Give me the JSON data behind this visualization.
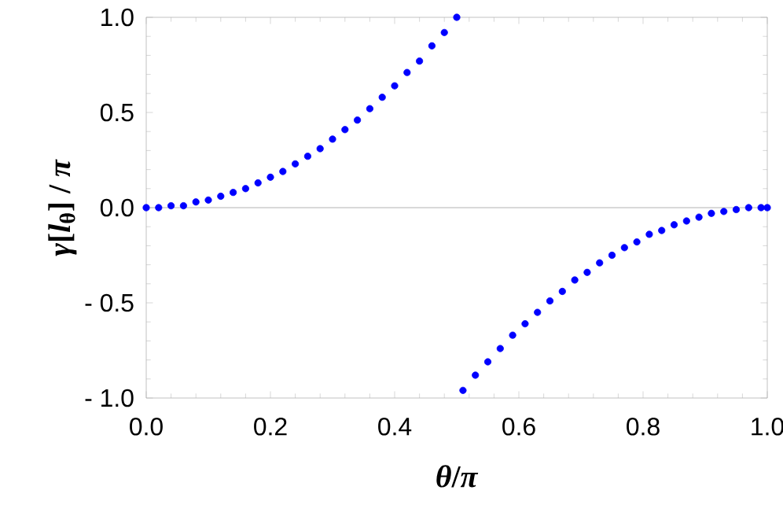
{
  "chart_data": {
    "type": "scatter",
    "xlabel": "*θ*/*π*",
    "ylabel": "*γ*[*l*$_{θ}$] / *π*",
    "x": [
      0,
      0.02,
      0.04,
      0.06,
      0.08,
      0.1,
      0.12,
      0.14,
      0.16,
      0.18,
      0.2,
      0.22,
      0.24,
      0.26,
      0.28,
      0.3,
      0.32,
      0.34,
      0.36,
      0.38,
      0.4,
      0.42,
      0.44,
      0.46,
      0.48,
      0.5,
      0.51,
      0.53,
      0.55,
      0.57,
      0.59,
      0.61,
      0.63,
      0.65,
      0.67,
      0.69,
      0.71,
      0.73,
      0.75,
      0.77,
      0.79,
      0.81,
      0.83,
      0.85,
      0.87,
      0.89,
      0.91,
      0.93,
      0.95,
      0.97,
      0.99,
      1.0
    ],
    "series": [
      {
        "color": "#0000ff",
        "values": [
          0,
          0,
          0.01,
          0.01,
          0.03,
          0.04,
          0.06,
          0.08,
          0.1,
          0.13,
          0.16,
          0.19,
          0.23,
          0.27,
          0.31,
          0.36,
          0.41,
          0.46,
          0.52,
          0.58,
          0.64,
          0.71,
          0.77,
          0.85,
          0.92,
          1.0,
          -0.96,
          -0.88,
          -0.81,
          -0.74,
          -0.67,
          -0.61,
          -0.55,
          -0.49,
          -0.44,
          -0.38,
          -0.34,
          -0.29,
          -0.25,
          -0.21,
          -0.18,
          -0.14,
          -0.12,
          -0.09,
          -0.07,
          -0.05,
          -0.03,
          -0.02,
          -0.01,
          0,
          0,
          0
        ]
      }
    ],
    "xlim": [
      0,
      1.0
    ],
    "ylim": [
      -1.0,
      1.0
    ],
    "xticks": [
      {
        "value": 0,
        "label": "0.0"
      },
      {
        "value": 0.2,
        "label": "0.2"
      },
      {
        "value": 0.4,
        "label": "0.4"
      },
      {
        "value": 0.6,
        "label": "0.6"
      },
      {
        "value": 0.8,
        "label": "0.8"
      },
      {
        "value": 1.0,
        "label": "1.0"
      }
    ],
    "yticks": [
      {
        "value": -1.0,
        "label": "- 1.0"
      },
      {
        "value": -0.5,
        "label": "- 0.5"
      },
      {
        "value": 0,
        "label": "0.0"
      },
      {
        "value": 0.5,
        "label": "0.5"
      },
      {
        "value": 1.0,
        "label": "1.0"
      }
    ],
    "ref_lines": [
      {
        "axis": "y",
        "value": 0,
        "color": "#b4b4b4"
      }
    ],
    "marker": "circle",
    "grid": false
  }
}
